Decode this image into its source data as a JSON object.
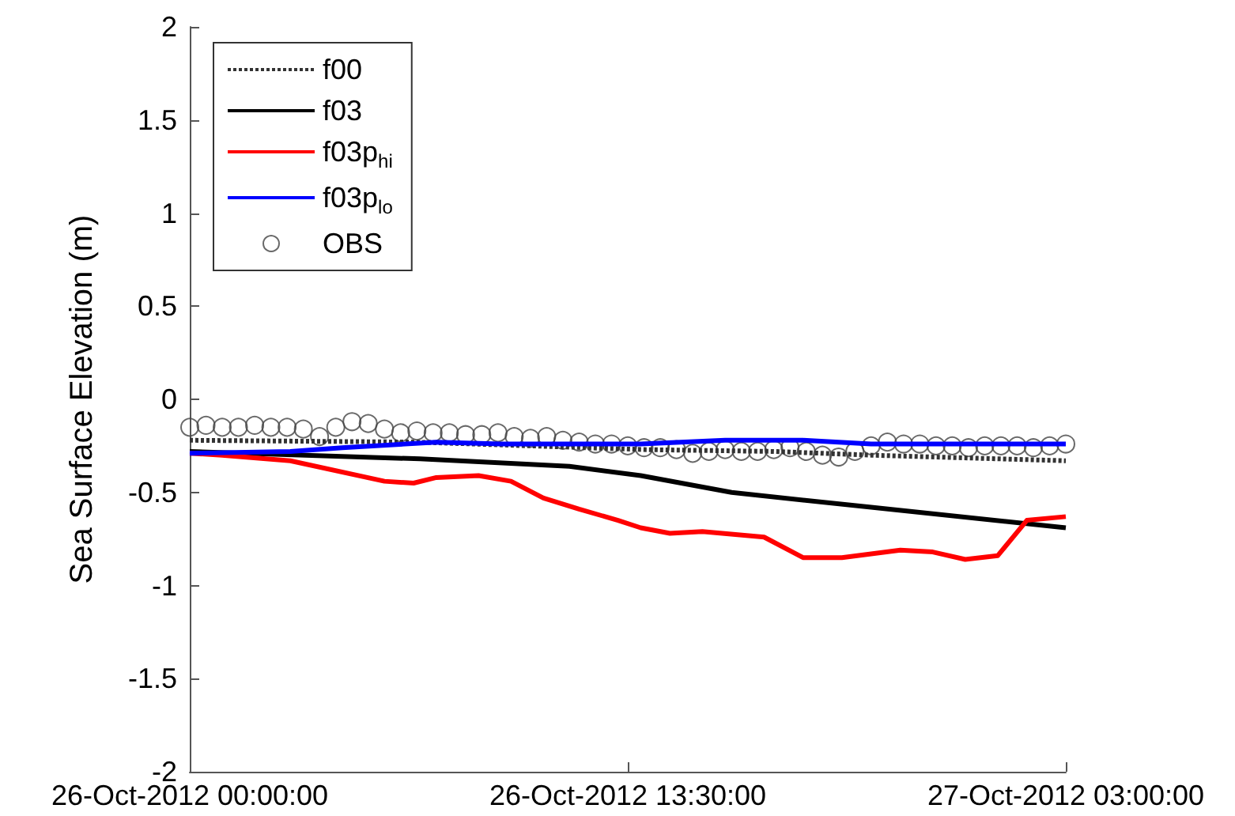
{
  "chart_data": {
    "type": "line",
    "ylabel": "Sea Surface Elevation (m)",
    "xlim": [
      "2012-10-26T00:00",
      "2012-10-27T03:00"
    ],
    "xticks": [
      {
        "value": "2012-10-26T00:00",
        "label": "26-Oct-2012 00:00:00"
      },
      {
        "value": "2012-10-26T13:30",
        "label": "26-Oct-2012 13:30:00"
      },
      {
        "value": "2012-10-27T03:00",
        "label": "27-Oct-2012 03:00:00"
      }
    ],
    "ylim": [
      -2,
      2
    ],
    "yticks": [
      -2,
      -1.5,
      -1,
      -0.5,
      0,
      0.5,
      1,
      1.5,
      2
    ],
    "grid": false,
    "legend": "top left",
    "series": [
      {
        "name": "f00",
        "color": "#333333",
        "line_style": "dotted",
        "x": [
          "2012-10-26T00:00",
          "2012-10-26T07:00",
          "2012-10-26T14:00",
          "2012-10-26T18:00",
          "2012-10-26T21:00",
          "2012-10-27T03:00"
        ],
        "values": [
          -0.22,
          -0.23,
          -0.27,
          -0.28,
          -0.3,
          -0.33
        ]
      },
      {
        "name": "f03",
        "color": "#000000",
        "line_style": "solid",
        "x": [
          "2012-10-26T00:00",
          "2012-10-26T07:06",
          "2012-10-26T11:42",
          "2012-10-26T13:54",
          "2012-10-26T16:42",
          "2012-10-26T21:00",
          "2012-10-27T03:00"
        ],
        "values": [
          -0.28,
          -0.32,
          -0.36,
          -0.41,
          -0.5,
          -0.58,
          -0.69
        ]
      },
      {
        "name": "f03p$_{hi}$",
        "color": "#ff0000",
        "line_style": "solid",
        "x": [
          "2012-10-26T00:00",
          "2012-10-26T01:00",
          "2012-10-26T03:06",
          "2012-10-26T06:00",
          "2012-10-26T06:54",
          "2012-10-26T07:36",
          "2012-10-26T08:54",
          "2012-10-26T09:54",
          "2012-10-26T10:54",
          "2012-10-26T12:00",
          "2012-10-26T13:12",
          "2012-10-26T13:54",
          "2012-10-26T14:48",
          "2012-10-26T15:48",
          "2012-10-26T17:42",
          "2012-10-26T18:54",
          "2012-10-26T20:06",
          "2012-10-26T21:54",
          "2012-10-26T22:54",
          "2012-10-26T23:54",
          "2012-10-27T00:54",
          "2012-10-27T01:48",
          "2012-10-27T03:00"
        ],
        "values": [
          -0.29,
          -0.3,
          -0.33,
          -0.44,
          -0.45,
          -0.42,
          -0.41,
          -0.44,
          -0.53,
          -0.59,
          -0.65,
          -0.69,
          -0.72,
          -0.71,
          -0.74,
          -0.85,
          -0.85,
          -0.81,
          -0.82,
          -0.86,
          -0.84,
          -0.65,
          -0.63
        ]
      },
      {
        "name": "f03p$_{lo}$",
        "color": "#0000ff",
        "line_style": "solid",
        "x": [
          "2012-10-26T00:00",
          "2012-10-26T03:06",
          "2012-10-26T04:42",
          "2012-10-26T07:36",
          "2012-10-26T09:36",
          "2012-10-26T13:54",
          "2012-10-26T16:30",
          "2012-10-26T18:54",
          "2012-10-26T21:00",
          "2012-10-27T03:00"
        ],
        "values": [
          -0.29,
          -0.28,
          -0.26,
          -0.23,
          -0.24,
          -0.24,
          -0.22,
          -0.22,
          -0.24,
          -0.24
        ]
      },
      {
        "name": "OBS",
        "type": "scatter",
        "marker": "circle",
        "color": "#444444",
        "x": [
          "2012-10-26T00:00",
          "2012-10-26T00:30",
          "2012-10-26T01:00",
          "2012-10-26T01:30",
          "2012-10-26T02:00",
          "2012-10-26T02:30",
          "2012-10-26T03:00",
          "2012-10-26T03:30",
          "2012-10-26T04:00",
          "2012-10-26T04:30",
          "2012-10-26T05:00",
          "2012-10-26T05:30",
          "2012-10-26T06:00",
          "2012-10-26T06:30",
          "2012-10-26T07:00",
          "2012-10-26T07:30",
          "2012-10-26T08:00",
          "2012-10-26T08:30",
          "2012-10-26T09:00",
          "2012-10-26T09:30",
          "2012-10-26T10:00",
          "2012-10-26T10:30",
          "2012-10-26T11:00",
          "2012-10-26T11:30",
          "2012-10-26T12:00",
          "2012-10-26T12:30",
          "2012-10-26T13:00",
          "2012-10-26T13:30",
          "2012-10-26T14:00",
          "2012-10-26T14:30",
          "2012-10-26T15:00",
          "2012-10-26T15:30",
          "2012-10-26T16:00",
          "2012-10-26T16:30",
          "2012-10-26T17:00",
          "2012-10-26T17:30",
          "2012-10-26T18:00",
          "2012-10-26T18:30",
          "2012-10-26T19:00",
          "2012-10-26T19:30",
          "2012-10-26T20:00",
          "2012-10-26T20:30",
          "2012-10-26T21:00",
          "2012-10-26T21:30",
          "2012-10-26T22:00",
          "2012-10-26T22:30",
          "2012-10-26T23:00",
          "2012-10-26T23:30",
          "2012-10-27T00:00",
          "2012-10-27T00:30",
          "2012-10-27T01:00",
          "2012-10-27T01:30",
          "2012-10-27T02:00",
          "2012-10-27T02:30",
          "2012-10-27T03:00"
        ],
        "values": [
          -0.15,
          -0.14,
          -0.15,
          -0.15,
          -0.14,
          -0.15,
          -0.15,
          -0.16,
          -0.2,
          -0.15,
          -0.12,
          -0.13,
          -0.16,
          -0.18,
          -0.17,
          -0.18,
          -0.18,
          -0.19,
          -0.19,
          -0.18,
          -0.2,
          -0.21,
          -0.2,
          -0.22,
          -0.23,
          -0.24,
          -0.24,
          -0.25,
          -0.26,
          -0.26,
          -0.27,
          -0.29,
          -0.28,
          -0.27,
          -0.28,
          -0.28,
          -0.27,
          -0.26,
          -0.28,
          -0.3,
          -0.31,
          -0.28,
          -0.25,
          -0.23,
          -0.24,
          -0.24,
          -0.25,
          -0.25,
          -0.26,
          -0.25,
          -0.25,
          -0.25,
          -0.26,
          -0.25,
          -0.24
        ]
      }
    ]
  }
}
